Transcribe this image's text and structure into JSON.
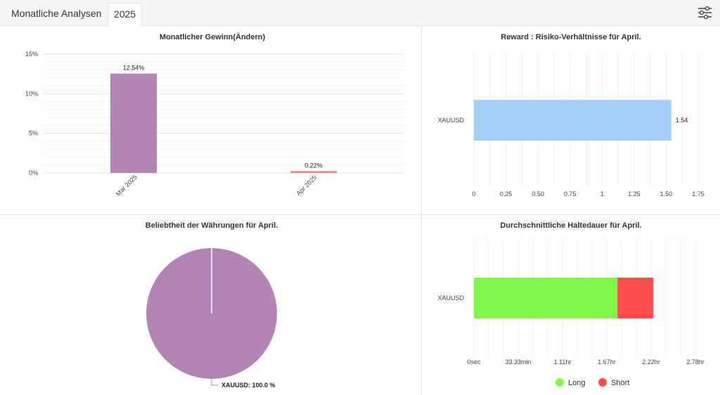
{
  "header": {
    "title": "Monatliche Analysen",
    "year_tab": "2025",
    "settings_icon": "sliders-icon"
  },
  "colors": {
    "purple": "#b385b5",
    "salmon": "#ef7f7f",
    "light_blue": "#a3d0f7",
    "green": "#82f74c",
    "red": "#fe4d4d"
  },
  "chart_data": [
    {
      "type": "bar",
      "title": "Monatlicher Gewinn(Ändern)",
      "categories": [
        "Mar 2025",
        "Apr 2025"
      ],
      "values": [
        12.54,
        0.22
      ],
      "data_labels": [
        "12.54%",
        "0.22%"
      ],
      "bar_colors": [
        "#b385b5",
        "#ef7f7f"
      ],
      "ylim": [
        0,
        15
      ],
      "yticks": [
        0,
        5,
        10,
        15
      ],
      "ytick_labels": [
        "0%",
        "5%",
        "10%",
        "15%"
      ],
      "grid": true
    },
    {
      "type": "bar",
      "orientation": "horizontal",
      "title": "Reward : Risiko-Verhältnisse für April.",
      "categories": [
        "XAUUSD"
      ],
      "values": [
        1.54
      ],
      "data_labels": [
        "1.54"
      ],
      "bar_colors": [
        "#a3d0f7"
      ],
      "xlim": [
        0,
        1.75
      ],
      "xticks": [
        0,
        0.25,
        0.5,
        0.75,
        1,
        1.25,
        1.5,
        1.75
      ],
      "xtick_labels": [
        "0",
        "0.25",
        "0.50",
        "0.75",
        "1",
        "1.25",
        "1.50",
        "1.75"
      ],
      "grid": true
    },
    {
      "type": "pie",
      "title": "Beliebtheit der Währungen für April.",
      "slices": [
        {
          "label": "XAUUSD: 100.0 %",
          "value": 100.0,
          "color": "#b385b5"
        }
      ]
    },
    {
      "type": "bar",
      "orientation": "horizontal",
      "stacked": true,
      "title": "Durchschnittliche Haltedauer für April.",
      "categories": [
        "XAUUSD"
      ],
      "x_unit": "min",
      "xlim": [
        0,
        166.67
      ],
      "xticks": [
        0,
        33.33,
        66.67,
        100,
        133.33,
        166.67
      ],
      "xtick_labels": [
        "0sec",
        "33.33min",
        "1.11hr",
        "1.67hr",
        "2.22hr",
        "2.78hr"
      ],
      "series": [
        {
          "name": "Long",
          "values": [
            108
          ],
          "color": "#82f74c"
        },
        {
          "name": "Short",
          "values": [
            27
          ],
          "color": "#fe4d4d"
        }
      ],
      "legend_position": "bottom",
      "grid": true
    }
  ]
}
